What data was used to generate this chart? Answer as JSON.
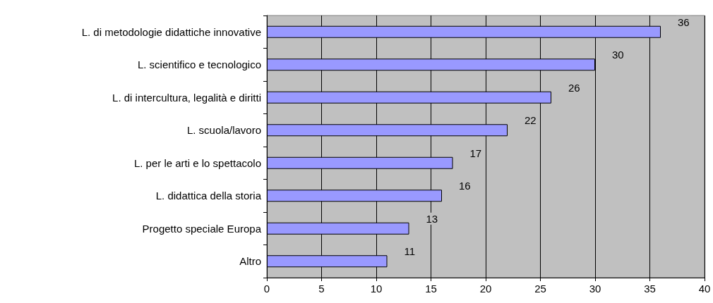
{
  "chart_data": {
    "type": "bar",
    "orientation": "horizontal",
    "categories": [
      "L. di metodologie didattiche innovative",
      "L. scientifico e tecnologico",
      "L. di intercultura, legalità e diritti",
      "L. scuola/lavoro",
      "L. per le arti e lo spettacolo",
      "L. didattica della storia",
      "Progetto speciale Europa",
      "Altro"
    ],
    "values": [
      36,
      30,
      26,
      22,
      17,
      16,
      13,
      11
    ],
    "color": "#9999ff",
    "xlim": [
      0,
      40
    ],
    "xticks": [
      0,
      5,
      10,
      15,
      20,
      25,
      30,
      35,
      40
    ],
    "grid": "x",
    "data_labels": true
  }
}
